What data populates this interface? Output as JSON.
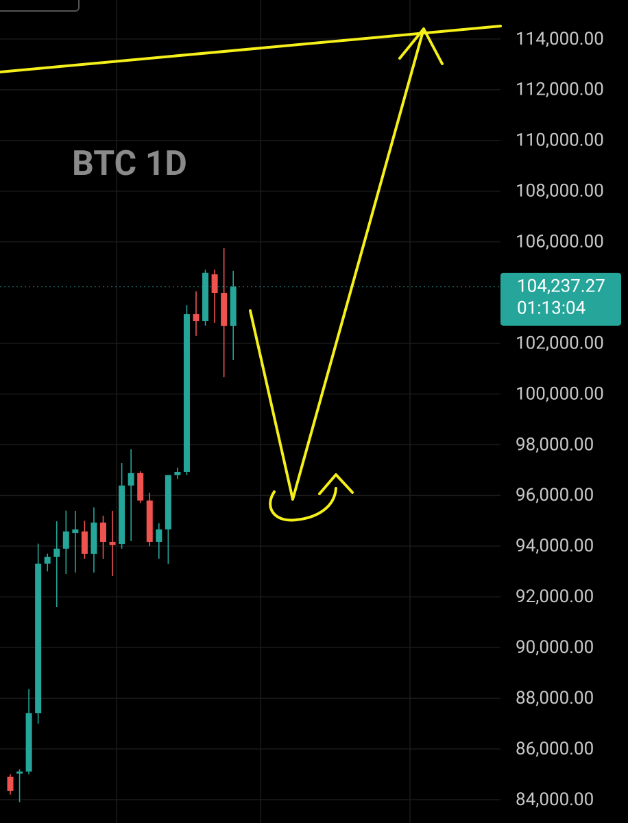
{
  "chart_data": {
    "type": "candlestick",
    "title": "BTC 1D",
    "open": [
      84900,
      85030,
      85110,
      87410,
      93310,
      93580,
      93900,
      94520,
      94580,
      93690,
      94930,
      94170,
      94090,
      96390,
      96880,
      95800,
      94170,
      94660,
      96800,
      96930,
      103150,
      102880,
      104720,
      103990,
      102690
    ],
    "high": [
      85000,
      85200,
      88360,
      94100,
      93700,
      94980,
      95400,
      95390,
      95000,
      95530,
      95200,
      95390,
      97280,
      97820,
      96950,
      96100,
      94900,
      96800,
      97100,
      103500,
      104050,
      104900,
      104900,
      105750,
      104860
    ],
    "low": [
      84200,
      83900,
      85000,
      87000,
      93000,
      91600,
      92900,
      92960,
      93500,
      92960,
      93500,
      92820,
      93900,
      94200,
      95700,
      94000,
      93500,
      93300,
      96650,
      96800,
      102290,
      102700,
      102800,
      100660,
      101340
    ],
    "close": [
      84350,
      85110,
      87410,
      93310,
      93580,
      93900,
      94580,
      94660,
      93690,
      94930,
      94170,
      94040,
      96390,
      96880,
      95800,
      94170,
      94660,
      96800,
      96930,
      103150,
      102880,
      104780,
      103990,
      102690,
      104237.27
    ],
    "up_color": "#26a69a",
    "down_color": "#ef5350",
    "ylim": [
      83080,
      115540
    ],
    "yticks": [
      {
        "value": 84000,
        "label": "84,000.00"
      },
      {
        "value": 86000,
        "label": "86,000.00"
      },
      {
        "value": 88000,
        "label": "88,000.00"
      },
      {
        "value": 90000,
        "label": "90,000.00"
      },
      {
        "value": 92000,
        "label": "92,000.00"
      },
      {
        "value": 94000,
        "label": "94,000.00"
      },
      {
        "value": 96000,
        "label": "96,000.00"
      },
      {
        "value": 98000,
        "label": "98,000.00"
      },
      {
        "value": 100000,
        "label": "100,000.00"
      },
      {
        "value": 102000,
        "label": "102,000.00"
      },
      {
        "value": 106000,
        "label": "106,000.00"
      },
      {
        "value": 108000,
        "label": "108,000.00"
      },
      {
        "value": 110000,
        "label": "110,000.00"
      },
      {
        "value": 112000,
        "label": "112,000.00"
      },
      {
        "value": 114000,
        "label": "114,000.00"
      }
    ],
    "last_price": {
      "value": 104237.27,
      "label": "104,237.27"
    },
    "countdown": "01:13:04",
    "grid": true
  }
}
